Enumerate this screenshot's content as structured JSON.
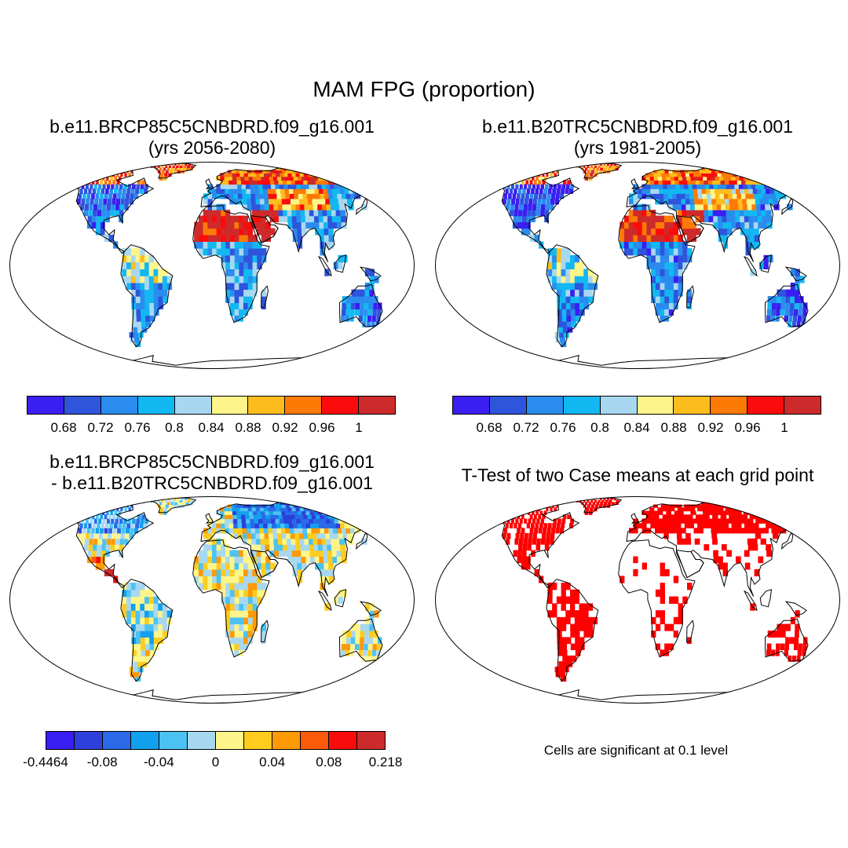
{
  "title": "MAM FPG (proportion)",
  "panels": [
    {
      "id": "future",
      "title_line1": "b.e11.BRCP85C5CNBDRD.f09_g16.001",
      "title_line2": "(yrs 2056-2080)",
      "kind": "field"
    },
    {
      "id": "historical",
      "title_line1": "b.e11.B20TRC5CNBDRD.f09_g16.001",
      "title_line2": "(yrs 1981-2005)",
      "kind": "field"
    },
    {
      "id": "difference",
      "title_line1": "b.e11.BRCP85C5CNBDRD.f09_g16.001",
      "title_line2": "- b.e11.B20TRC5CNBDRD.f09_g16.001",
      "kind": "diff"
    },
    {
      "id": "ttest",
      "title_line1": "T-Test of two Case means at each grid point",
      "title_line2": "",
      "kind": "ttest"
    }
  ],
  "colorbars": {
    "field": {
      "colors": [
        "#3a1ef2",
        "#2e55dc",
        "#2a8cee",
        "#12b8f2",
        "#a8d8f0",
        "#fdf58a",
        "#fdbd1e",
        "#fd7a06",
        "#fb0b0b",
        "#cd2b2b"
      ],
      "labels": [
        "0.68",
        "0.72",
        "0.76",
        "0.8",
        "0.84",
        "0.88",
        "0.92",
        "0.96",
        "1"
      ]
    },
    "diff": {
      "colors": [
        "#3a1ef2",
        "#2e40dc",
        "#2a6ae8",
        "#12a0ee",
        "#4cc2f2",
        "#a8d8f0",
        "#fdf58a",
        "#fdcc1e",
        "#fd9a06",
        "#fb5a0b",
        "#f80c0c",
        "#cd2b2b"
      ],
      "labels": [
        "-0.4464",
        "-0.08",
        "-0.04",
        "0",
        "0.04",
        "0.08",
        "0.218"
      ]
    }
  },
  "ttest_note": "Cells are significant at 0.1 level",
  "significance_color": "#ff0000"
}
